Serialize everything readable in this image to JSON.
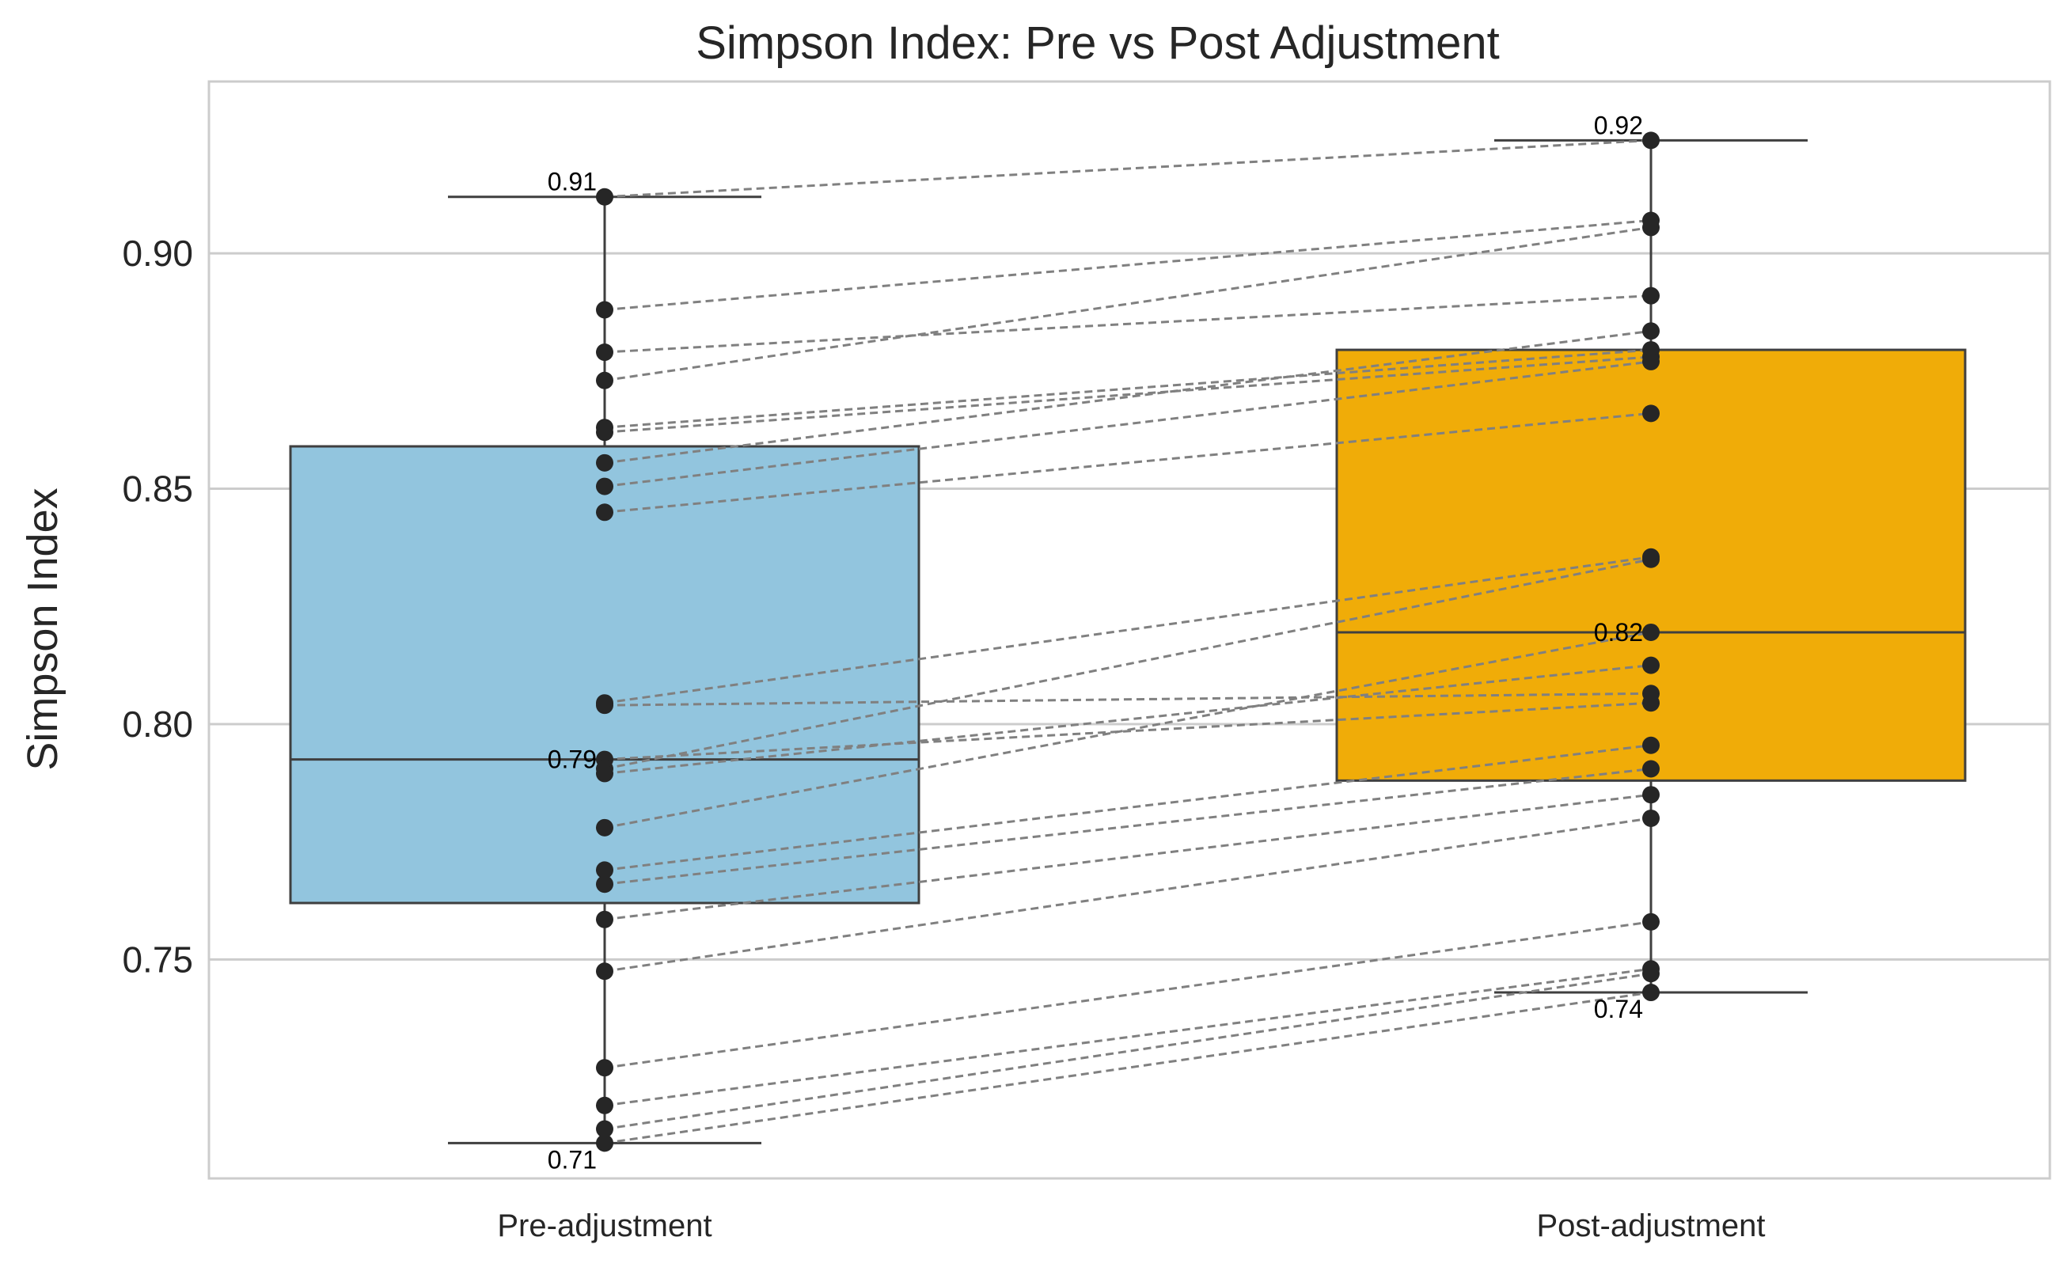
{
  "chart_data": {
    "type": "box",
    "title": "Simpson Index: Pre vs Post Adjustment",
    "xlabel": "",
    "ylabel": "Simpson Index",
    "ylim": [
      0.7035,
      0.9365
    ],
    "yticks": [
      0.75,
      0.8,
      0.85,
      0.9
    ],
    "ytick_labels": [
      "0.75",
      "0.80",
      "0.85",
      "0.90"
    ],
    "grid": true,
    "categories": [
      "Pre-adjustment",
      "Post-adjustment"
    ],
    "box_colors": [
      "#92c5de",
      "#f0ac08"
    ],
    "series": [
      {
        "category": "Pre-adjustment",
        "q1": 0.762,
        "median": 0.7925,
        "q3": 0.859,
        "whisker_low": 0.711,
        "whisker_high": 0.912,
        "annotations": {
          "max": "0.91",
          "median": "0.79",
          "min": "0.71"
        },
        "values": [
          0.912,
          0.888,
          0.879,
          0.873,
          0.863,
          0.862,
          0.8555,
          0.8505,
          0.845,
          0.8045,
          0.804,
          0.7925,
          0.7905,
          0.7895,
          0.778,
          0.769,
          0.766,
          0.7585,
          0.7475,
          0.727,
          0.719,
          0.714,
          0.711
        ]
      },
      {
        "category": "Post-adjustment",
        "q1": 0.788,
        "median": 0.8195,
        "q3": 0.8795,
        "whisker_low": 0.743,
        "whisker_high": 0.924,
        "annotations": {
          "max": "0.92",
          "median": "0.82",
          "min": "0.74"
        },
        "values": [
          0.924,
          0.907,
          0.9055,
          0.891,
          0.8835,
          0.8795,
          0.878,
          0.877,
          0.866,
          0.8355,
          0.835,
          0.8195,
          0.8125,
          0.8065,
          0.8045,
          0.7955,
          0.7905,
          0.785,
          0.78,
          0.758,
          0.748,
          0.747,
          0.743
        ]
      }
    ],
    "pairs": [
      [
        0.912,
        0.924
      ],
      [
        0.888,
        0.907
      ],
      [
        0.879,
        0.891
      ],
      [
        0.873,
        0.9055
      ],
      [
        0.863,
        0.8795
      ],
      [
        0.862,
        0.878
      ],
      [
        0.8555,
        0.8835
      ],
      [
        0.8505,
        0.877
      ],
      [
        0.845,
        0.866
      ],
      [
        0.8045,
        0.8355
      ],
      [
        0.804,
        0.8065
      ],
      [
        0.7925,
        0.8045
      ],
      [
        0.7905,
        0.835
      ],
      [
        0.7895,
        0.8125
      ],
      [
        0.778,
        0.8195
      ],
      [
        0.769,
        0.7955
      ],
      [
        0.766,
        0.7905
      ],
      [
        0.7585,
        0.785
      ],
      [
        0.7475,
        0.78
      ],
      [
        0.727,
        0.758
      ],
      [
        0.719,
        0.748
      ],
      [
        0.714,
        0.747
      ],
      [
        0.711,
        0.743
      ]
    ]
  }
}
